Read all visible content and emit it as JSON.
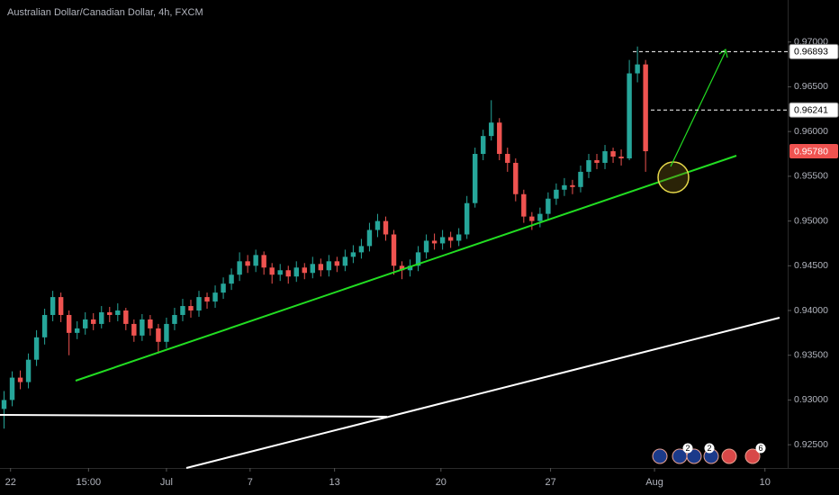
{
  "chart_data": {
    "type": "candlestick",
    "title": "Australian Dollar/Canadian Dollar, 4h, FXCM",
    "up_color": "#26a69a",
    "down_color": "#ef5350",
    "grid": false,
    "open": [
      0.929,
      0.93,
      0.9325,
      0.932,
      0.9345,
      0.937,
      0.9395,
      0.9415,
      0.9395,
      0.9375,
      0.938,
      0.939,
      0.9385,
      0.9398,
      0.9395,
      0.94,
      0.9385,
      0.9372,
      0.939,
      0.938,
      0.9365,
      0.9385,
      0.9395,
      0.9405,
      0.94,
      0.9415,
      0.941,
      0.942,
      0.943,
      0.944,
      0.9455,
      0.945,
      0.9462,
      0.9448,
      0.944,
      0.9445,
      0.9438,
      0.9448,
      0.9442,
      0.9452,
      0.9445,
      0.9455,
      0.945,
      0.946,
      0.9465,
      0.9472,
      0.949,
      0.95,
      0.9485,
      0.945,
      0.9445,
      0.945,
      0.9465,
      0.9478,
      0.9475,
      0.9482,
      0.9478,
      0.9485,
      0.952,
      0.9575,
      0.9595,
      0.961,
      0.9575,
      0.9565,
      0.953,
      0.9505,
      0.95,
      0.9508,
      0.9525,
      0.9535,
      0.954,
      0.9538,
      0.9555,
      0.9568,
      0.9565,
      0.9578,
      0.9572,
      0.957,
      0.9665,
      0.9675
    ],
    "high": [
      0.931,
      0.9332,
      0.9333,
      0.9352,
      0.9378,
      0.9402,
      0.9422,
      0.942,
      0.94,
      0.9388,
      0.9398,
      0.9397,
      0.9405,
      0.9404,
      0.9408,
      0.9403,
      0.939,
      0.9396,
      0.9395,
      0.9385,
      0.9392,
      0.9403,
      0.9413,
      0.9412,
      0.9422,
      0.942,
      0.9428,
      0.9437,
      0.9447,
      0.9465,
      0.9462,
      0.9468,
      0.9466,
      0.9453,
      0.9452,
      0.945,
      0.9455,
      0.9453,
      0.946,
      0.9458,
      0.9462,
      0.946,
      0.9468,
      0.9473,
      0.948,
      0.9498,
      0.9508,
      0.9505,
      0.949,
      0.9455,
      0.9457,
      0.9472,
      0.9485,
      0.9486,
      0.949,
      0.9488,
      0.9492,
      0.9528,
      0.9582,
      0.9602,
      0.9635,
      0.9615,
      0.9582,
      0.957,
      0.9535,
      0.951,
      0.9515,
      0.9532,
      0.9542,
      0.9548,
      0.9546,
      0.9562,
      0.9575,
      0.9575,
      0.9585,
      0.9582,
      0.958,
      0.968,
      0.9695,
      0.968
    ],
    "low": [
      0.9268,
      0.9293,
      0.9312,
      0.9313,
      0.9338,
      0.9362,
      0.9388,
      0.9387,
      0.935,
      0.9368,
      0.9373,
      0.9378,
      0.938,
      0.9387,
      0.9388,
      0.9378,
      0.9365,
      0.9366,
      0.9372,
      0.9352,
      0.9358,
      0.9378,
      0.9388,
      0.9392,
      0.9393,
      0.9402,
      0.9403,
      0.9413,
      0.9423,
      0.9433,
      0.9442,
      0.9443,
      0.944,
      0.943,
      0.9433,
      0.943,
      0.9432,
      0.9435,
      0.9436,
      0.9438,
      0.9438,
      0.9443,
      0.9444,
      0.9453,
      0.9458,
      0.9466,
      0.9482,
      0.9478,
      0.944,
      0.9435,
      0.9438,
      0.9444,
      0.9458,
      0.9468,
      0.9468,
      0.947,
      0.9472,
      0.948,
      0.9515,
      0.9568,
      0.959,
      0.9568,
      0.9555,
      0.9522,
      0.9498,
      0.949,
      0.9493,
      0.9502,
      0.9518,
      0.9528,
      0.953,
      0.9532,
      0.9548,
      0.9558,
      0.9558,
      0.9565,
      0.9562,
      0.9568,
      0.9655,
      0.9555
    ],
    "close": [
      0.93,
      0.9325,
      0.932,
      0.9345,
      0.937,
      0.9395,
      0.9415,
      0.9395,
      0.9375,
      0.938,
      0.939,
      0.9385,
      0.9398,
      0.9395,
      0.94,
      0.9385,
      0.9372,
      0.939,
      0.938,
      0.9365,
      0.9385,
      0.9395,
      0.9405,
      0.94,
      0.9415,
      0.941,
      0.942,
      0.943,
      0.944,
      0.9455,
      0.945,
      0.9462,
      0.9448,
      0.944,
      0.9445,
      0.9438,
      0.9448,
      0.9442,
      0.9452,
      0.9445,
      0.9455,
      0.945,
      0.946,
      0.9465,
      0.9472,
      0.949,
      0.95,
      0.9485,
      0.945,
      0.9445,
      0.945,
      0.9465,
      0.9478,
      0.9475,
      0.9482,
      0.9478,
      0.9485,
      0.952,
      0.9575,
      0.9595,
      0.961,
      0.9575,
      0.9565,
      0.953,
      0.9505,
      0.95,
      0.9508,
      0.9525,
      0.9535,
      0.954,
      0.9538,
      0.9555,
      0.9568,
      0.9565,
      0.9578,
      0.9572,
      0.957,
      0.9665,
      0.9675,
      0.9578
    ],
    "xlim": [
      -0.5,
      96.5
    ],
    "xticks": [
      {
        "value": 0.8,
        "label": "22"
      },
      {
        "value": 10.4,
        "label": "15:00"
      },
      {
        "value": 20,
        "label": "Jul"
      },
      {
        "value": 30.3,
        "label": "7"
      },
      {
        "value": 40.7,
        "label": "13"
      },
      {
        "value": 53.8,
        "label": "20"
      },
      {
        "value": 67.3,
        "label": "27"
      },
      {
        "value": 80.1,
        "label": "Aug"
      },
      {
        "value": 93.7,
        "label": "10"
      }
    ],
    "ylim": [
      0.9224,
      0.9747
    ],
    "yticks": [
      {
        "value": 0.97,
        "label": "0.97000"
      },
      {
        "value": 0.965,
        "label": "0.96500"
      },
      {
        "value": 0.96,
        "label": "0.96000"
      },
      {
        "value": 0.955,
        "label": "0.95500"
      },
      {
        "value": 0.95,
        "label": "0.95000"
      },
      {
        "value": 0.945,
        "label": "0.94500"
      },
      {
        "value": 0.94,
        "label": "0.94000"
      },
      {
        "value": 0.935,
        "label": "0.93500"
      },
      {
        "value": 0.93,
        "label": "0.93000"
      },
      {
        "value": 0.925,
        "label": "0.92500"
      }
    ],
    "price_labels": [
      {
        "value": 0.96893,
        "label": "0.96893",
        "color": "#ffffff",
        "dashed": true
      },
      {
        "value": 0.96241,
        "label": "0.96241",
        "color": "#ffffff",
        "dashed": true
      },
      {
        "value": 0.9578,
        "label": "0.95780",
        "color": "#ef5350",
        "dashed": false
      }
    ],
    "event_badges": [
      "2",
      "2",
      "6"
    ]
  }
}
